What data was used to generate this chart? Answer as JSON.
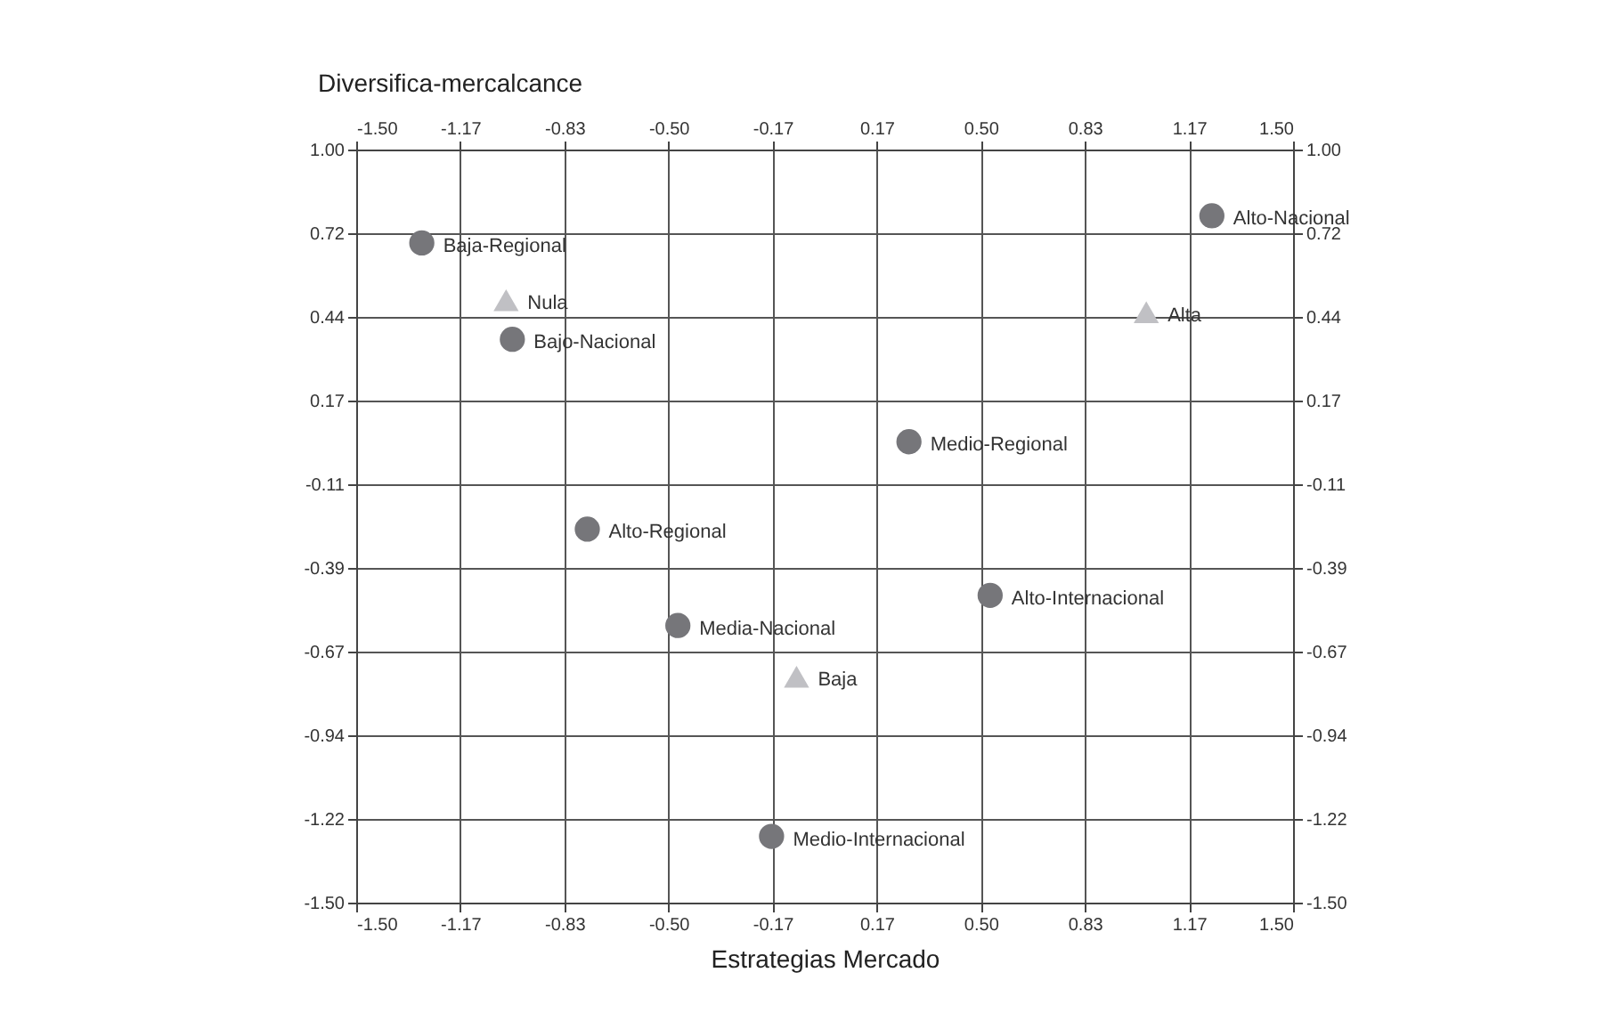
{
  "chart_data": {
    "type": "scatter",
    "xlabel": "Estrategias Mercado",
    "ylabel": "Diversifica-mercalcance",
    "xlim": [
      -1.5,
      1.5
    ],
    "xticks": [
      {
        "value": -1.5,
        "label": "-1.50"
      },
      {
        "value": -1.1667,
        "label": "-1.17"
      },
      {
        "value": -0.8333,
        "label": "-0.83"
      },
      {
        "value": -0.5,
        "label": "-0.50"
      },
      {
        "value": -0.1667,
        "label": "-0.17"
      },
      {
        "value": 0.1667,
        "label": "0.17"
      },
      {
        "value": 0.5,
        "label": "0.50"
      },
      {
        "value": 0.8333,
        "label": "0.83"
      },
      {
        "value": 1.1667,
        "label": "1.17"
      },
      {
        "value": 1.5,
        "label": "1.50"
      }
    ],
    "x2lim": [
      -1.5,
      1.5
    ],
    "x2ticks": [
      {
        "value": -1.5,
        "label": "-1.50"
      },
      {
        "value": -1.1667,
        "label": "-1.17"
      },
      {
        "value": -0.8333,
        "label": "-0.83"
      },
      {
        "value": -0.5,
        "label": "-0.50"
      },
      {
        "value": -0.1667,
        "label": "-0.17"
      },
      {
        "value": 0.1667,
        "label": "0.17"
      },
      {
        "value": 0.5,
        "label": "0.50"
      },
      {
        "value": 0.8333,
        "label": "0.83"
      },
      {
        "value": 1.1667,
        "label": "1.17"
      },
      {
        "value": 1.5,
        "label": "1.50"
      }
    ],
    "ylim": [
      -1.5,
      1.0
    ],
    "yticks": [
      {
        "value": 1.0,
        "label": "1.00"
      },
      {
        "value": 0.7222,
        "label": "0.72"
      },
      {
        "value": 0.4444,
        "label": "0.44"
      },
      {
        "value": 0.1667,
        "label": "0.17"
      },
      {
        "value": -0.1111,
        "label": "-0.11"
      },
      {
        "value": -0.3889,
        "label": "-0.39"
      },
      {
        "value": -0.6667,
        "label": "-0.67"
      },
      {
        "value": -0.9444,
        "label": "-0.94"
      },
      {
        "value": -1.2222,
        "label": "-1.22"
      },
      {
        "value": -1.5,
        "label": "-1.50"
      }
    ],
    "y2lim": [
      -1.5,
      1.0
    ],
    "y2ticks": [
      {
        "value": 1.0,
        "label": "1.00"
      },
      {
        "value": 0.7222,
        "label": "0.72"
      },
      {
        "value": 0.4444,
        "label": "0.44"
      },
      {
        "value": 0.1667,
        "label": "0.17"
      },
      {
        "value": -0.1111,
        "label": "-0.11"
      },
      {
        "value": -0.3889,
        "label": "-0.39"
      },
      {
        "value": -0.6667,
        "label": "-0.67"
      },
      {
        "value": -0.9444,
        "label": "-0.94"
      },
      {
        "value": -1.2222,
        "label": "-1.22"
      },
      {
        "value": -1.5,
        "label": "-1.50"
      }
    ],
    "grid": true,
    "series": [
      {
        "color": "#76767a",
        "marker": "circle",
        "x": [
          -1.29,
          -1.0,
          -0.76,
          -0.47,
          -0.17,
          0.27,
          0.53,
          1.24
        ],
        "values": [
          0.69,
          0.37,
          -0.26,
          -0.58,
          -1.28,
          0.03,
          -0.48,
          0.78
        ]
      },
      {
        "color": "#c0c0c4",
        "marker": "triangle",
        "x": [
          -1.02,
          -0.09,
          1.03
        ],
        "values": [
          0.5,
          -0.75,
          0.46
        ]
      }
    ],
    "annotations": [
      {
        "text": "Baja-Regional",
        "x": -1.29,
        "y": 0.69
      },
      {
        "text": "Bajo-Nacional",
        "x": -1.0,
        "y": 0.37
      },
      {
        "text": "Alto-Regional",
        "x": -0.76,
        "y": -0.26
      },
      {
        "text": "Media-Nacional",
        "x": -0.47,
        "y": -0.58
      },
      {
        "text": "Medio-Internacional",
        "x": -0.17,
        "y": -1.28
      },
      {
        "text": "Medio-Regional",
        "x": 0.27,
        "y": 0.03
      },
      {
        "text": "Alto-Internacional",
        "x": 0.53,
        "y": -0.48
      },
      {
        "text": "Alto-Nacional",
        "x": 1.24,
        "y": 0.78
      },
      {
        "text": "Nula",
        "x": -1.02,
        "y": 0.5
      },
      {
        "text": "Baja",
        "x": -0.09,
        "y": -0.75
      },
      {
        "text": "Alta",
        "x": 1.03,
        "y": 0.46
      }
    ]
  }
}
